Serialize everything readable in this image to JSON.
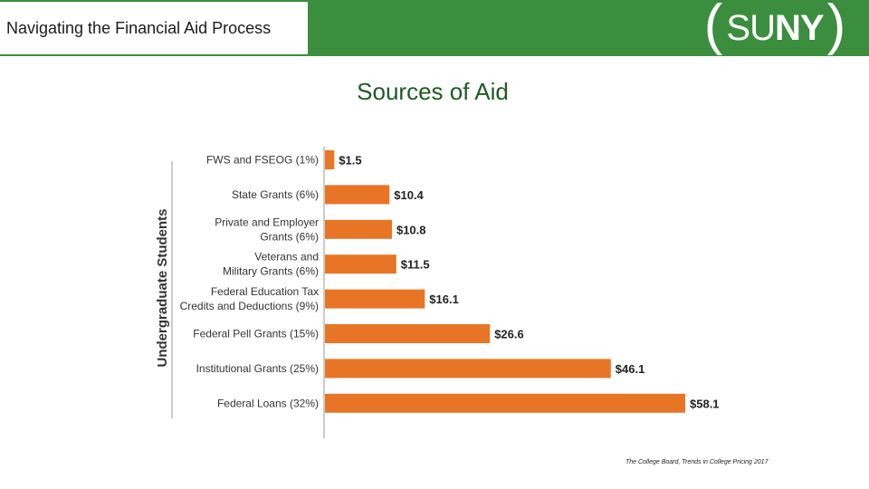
{
  "header": {
    "title": "Navigating the Financial Aid Process",
    "logo_text": "SUNY",
    "logo_light": "SU",
    "logo_bold": "NY",
    "bar_color": "#3b8e3e"
  },
  "slide": {
    "title": "Sources of Aid",
    "source": "The College Board, Trends in College Pricing 2017"
  },
  "chart_data": {
    "type": "bar",
    "orientation": "horizontal",
    "ylabel": "Undergraduate Students",
    "bar_color": "#e87525",
    "categories": [
      [
        "FWS and FSEOG (1%)"
      ],
      [
        "State Grants (6%)"
      ],
      [
        "Private and Employer",
        "Grants (6%)"
      ],
      [
        "Veterans and",
        "Military Grants (6%)"
      ],
      [
        "Federal Education Tax",
        "Credits and Deductions (9%)"
      ],
      [
        "Federal Pell Grants (15%)"
      ],
      [
        "Institutional Grants (25%)"
      ],
      [
        "Federal Loans (32%)"
      ]
    ],
    "values": [
      1.5,
      10.4,
      10.8,
      11.5,
      16.1,
      26.6,
      46.1,
      58.1
    ],
    "data_labels": [
      "$1.5",
      "$10.4",
      "$10.8",
      "$11.5",
      "$16.1",
      "$26.6",
      "$46.1",
      "$58.1"
    ],
    "xlim": [
      0,
      58.1
    ],
    "grid": false
  }
}
